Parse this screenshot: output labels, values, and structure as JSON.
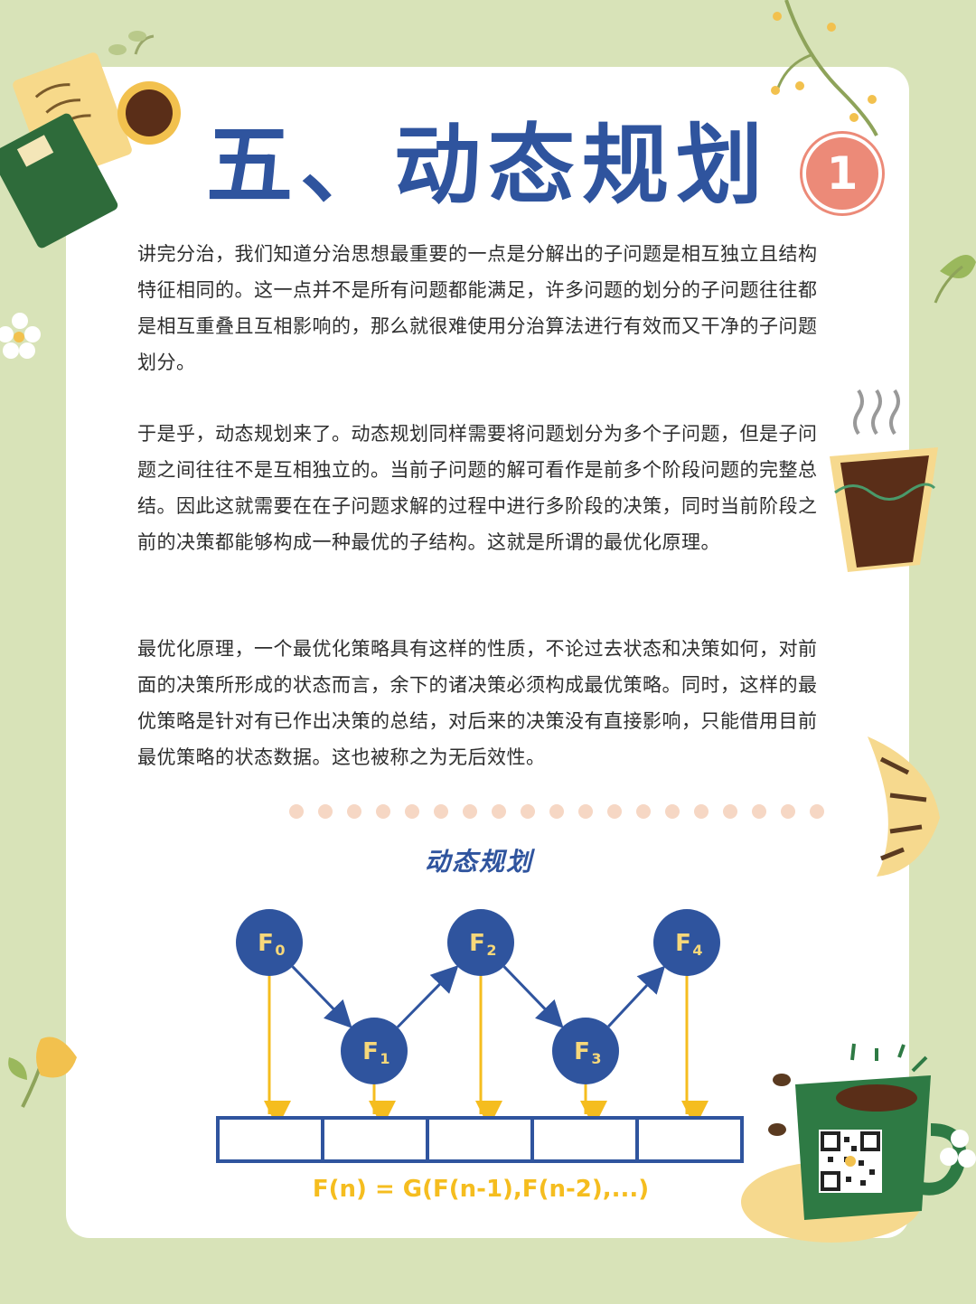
{
  "title": "五、动态规划",
  "badge": "1",
  "paragraphs": [
    "讲完分治，我们知道分治思想最重要的一点是分解出的子问题是相互独立且结构特征相同的。这一点并不是所有问题都能满足，许多问题的划分的子问题往往都是相互重叠且互相影响的，那么就很难使用分治算法进行有效而又干净的子问题划分。",
    "于是乎，动态规划来了。动态规划同样需要将问题划分为多个子问题，但是子问题之间往往不是互相独立的。当前子问题的解可看作是前多个阶段问题的完整总结。因此这就需要在在子问题求解的过程中进行多阶段的决策，同时当前阶段之前的决策都能够构成一种最优的子结构。这就是所谓的最优化原理。",
    "最优化原理，一个最优化策略具有这样的性质，不论过去状态和决策如何，对前面的决策所形成的状态而言，余下的诸决策必须构成最优策略。同时，这样的最优策略是针对有已作出决策的总结，对后来的决策没有直接影响，只能借用目前最优策略的状态数据。这也被称之为无后效性。"
  ],
  "diagram": {
    "title": "动态规划",
    "nodes": [
      {
        "label": "F",
        "sub": "0"
      },
      {
        "label": "F",
        "sub": "1"
      },
      {
        "label": "F",
        "sub": "2"
      },
      {
        "label": "F",
        "sub": "3"
      },
      {
        "label": "F",
        "sub": "4"
      }
    ],
    "formula": "F(n) = G(F(n-1),F(n-2),...)",
    "colors": {
      "node": "#2f549e",
      "arrow": "#f5bd1f",
      "table": "#2f549e",
      "formula": "#f5bd1f"
    }
  },
  "colors": {
    "background": "#d8e3b8",
    "title": "#2f549e",
    "badge": "#ec8a78"
  }
}
